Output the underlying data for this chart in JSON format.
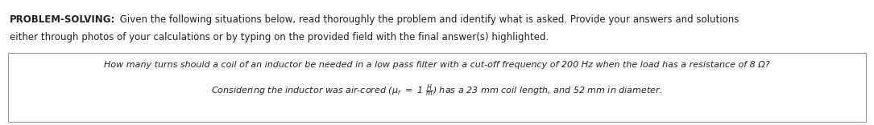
{
  "bg_color": "#ffffff",
  "header_bold": "PROBLEM-SOLVING:",
  "header_normal": " Given the following situations below, read thoroughly the problem and identify what is asked. Provide your answers and solutions",
  "header_line2": "either through photos of your calculations or by typing on the provided field with the final answer(s) highlighted.",
  "box_line1": "How many turns should a coil of an inductor be needed in a low pass filter with a cut-off frequency of 200 Hz when the load has a resistance of 8 Ω?",
  "box_line2": "Considering the inductor was air-cored (μᵣ = 1 $\\frac{H}{m}$) has a 23 mm coil length, and 52 mm in diameter.",
  "font_size_header": 8.5,
  "font_size_box": 8.0,
  "box_border_color": "#999999",
  "text_color": "#222222",
  "fig_width": 10.85,
  "fig_height": 1.56,
  "dpi": 100
}
